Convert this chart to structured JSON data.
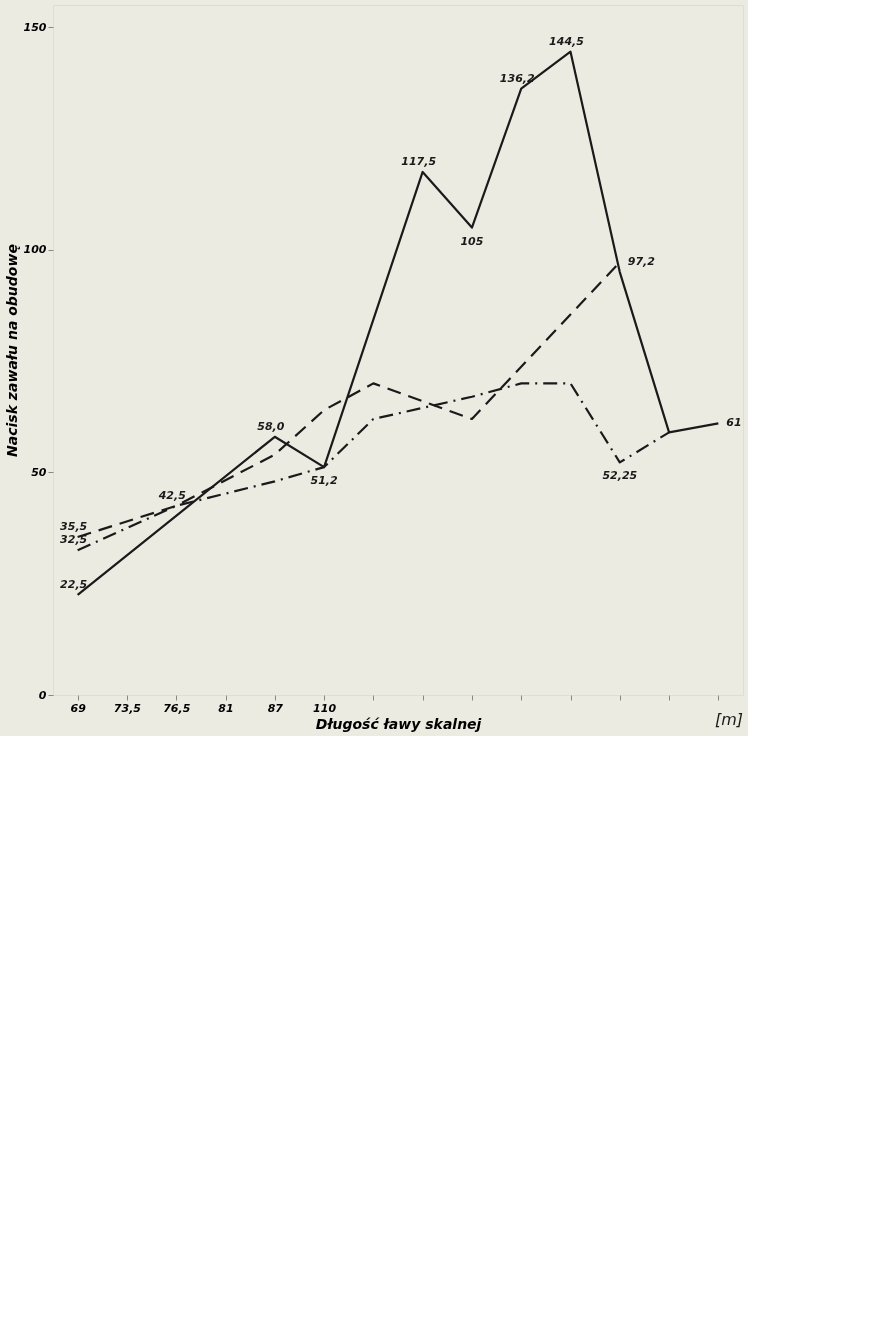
{
  "chart_data": {
    "type": "line",
    "xlabel": "Długość ławy skalnej",
    "ylabel": "Nacisk zawału na obudowę",
    "annotations": [
      "[m]"
    ],
    "categories": [
      "69",
      "73,5",
      "76,5",
      "81",
      "87",
      "110",
      null,
      null,
      null,
      null,
      null,
      null,
      null,
      null
    ],
    "ylim": [
      0,
      155
    ],
    "yticks": [
      0,
      50,
      100,
      150
    ],
    "grid": false,
    "marker": "none",
    "series": [
      {
        "color": "#1a1a1a",
        "line_style": "solid",
        "values": [
          22.5,
          null,
          null,
          null,
          58.0,
          51.2,
          null,
          117.5,
          105,
          136.2,
          144.5,
          95,
          59,
          61
        ],
        "value_labels": [
          "22,5",
          null,
          null,
          null,
          "58,0",
          "51,2",
          null,
          "117,5",
          "105",
          "136,2",
          "144,5",
          null,
          null,
          "61"
        ]
      },
      {
        "color": "#1a1a1a",
        "line_style": "dashed",
        "values": [
          35.5,
          null,
          42.5,
          null,
          54,
          64,
          70,
          null,
          62,
          null,
          null,
          97.2,
          null,
          null
        ],
        "value_labels": [
          "35,5",
          null,
          "42,5",
          null,
          null,
          null,
          null,
          null,
          null,
          null,
          null,
          "97,2",
          null,
          null
        ]
      },
      {
        "color": "#1a1a1a",
        "line_style": "dashdot",
        "values": [
          32.5,
          null,
          42.5,
          null,
          48,
          51.2,
          62,
          null,
          67,
          70,
          70,
          52.25,
          59,
          null
        ],
        "value_labels": [
          "32,5",
          null,
          null,
          null,
          null,
          null,
          null,
          null,
          null,
          null,
          null,
          "52,25",
          null,
          null
        ]
      }
    ]
  }
}
